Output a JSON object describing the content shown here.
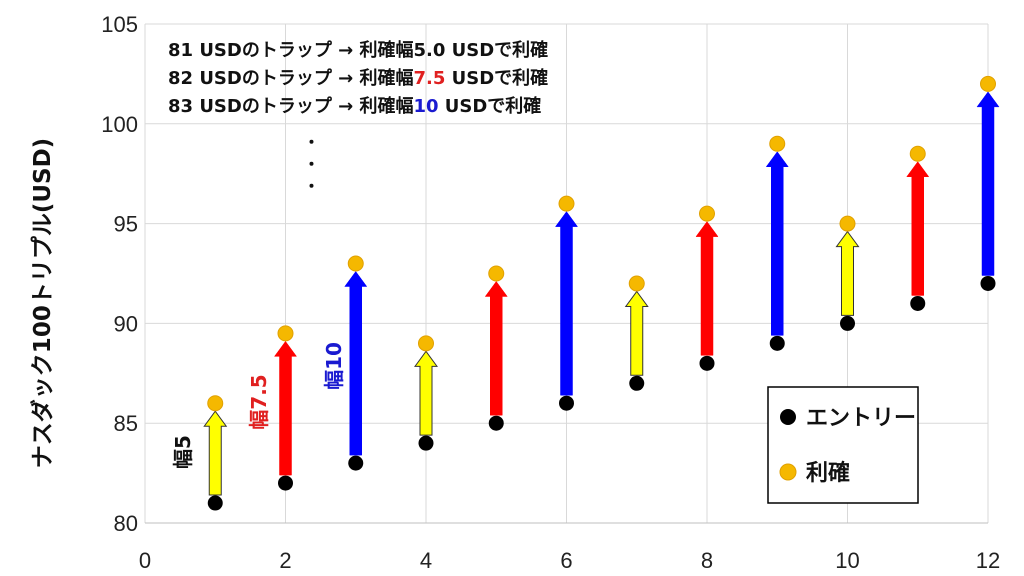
{
  "chart_data": {
    "type": "scatter",
    "xlim": [
      0,
      12
    ],
    "ylim": [
      80,
      105
    ],
    "x_ticks": [
      0,
      2,
      4,
      6,
      8,
      10,
      12
    ],
    "y_ticks": [
      80,
      85,
      90,
      95,
      100,
      105
    ],
    "x_tick_labels": [
      "0",
      "2",
      "4",
      "6",
      "8",
      "10",
      "12"
    ],
    "y_tick_labels": [
      "80",
      "85",
      "90",
      "95",
      "100",
      "105"
    ],
    "ylabel": "ナスダック100トリプル(USD)",
    "grid": true,
    "legend_position": "bottom-right",
    "series": [
      {
        "name": "エントリー",
        "color": "#000000",
        "x": [
          1,
          2,
          3,
          4,
          5,
          6,
          7,
          8,
          9,
          10,
          11,
          12
        ],
        "y": [
          81,
          82,
          83,
          84,
          85,
          86,
          87,
          88,
          89,
          90,
          91,
          92
        ]
      },
      {
        "name": "利確",
        "color": "#f5b800",
        "x": [
          1,
          2,
          3,
          4,
          5,
          6,
          7,
          8,
          9,
          10,
          11,
          12
        ],
        "y": [
          86,
          89.5,
          93,
          89,
          92.5,
          96,
          92,
          95.5,
          99,
          95,
          98.5,
          102
        ]
      }
    ],
    "arrow_widths": [
      5,
      7.5,
      10,
      5,
      7.5,
      10,
      5,
      7.5,
      10,
      5,
      7.5,
      10
    ],
    "arrow_colors": {
      "5": "#ffff00",
      "7.5": "#ff0000",
      "10": "#0000ff"
    },
    "annotation_lines": [
      {
        "before": "81 USDのトラップ → 利確幅",
        "value": "5.0",
        "value_color": "#111111",
        "after": " USDで利確"
      },
      {
        "before": "82 USDのトラップ → 利確幅",
        "value": "7.5",
        "value_color": "#e02020",
        "after": " USDで利確"
      },
      {
        "before": "83 USDのトラップ → 利確幅",
        "value": "10",
        "value_color": "#1a1ad0",
        "after": " USDで利確"
      }
    ],
    "ellipsis": "・・・",
    "width_labels": [
      {
        "text": "幅5",
        "color": "#111111"
      },
      {
        "text": "幅7.5",
        "color": "#e02020"
      },
      {
        "text": "幅10",
        "color": "#1a1ad0"
      }
    ]
  }
}
